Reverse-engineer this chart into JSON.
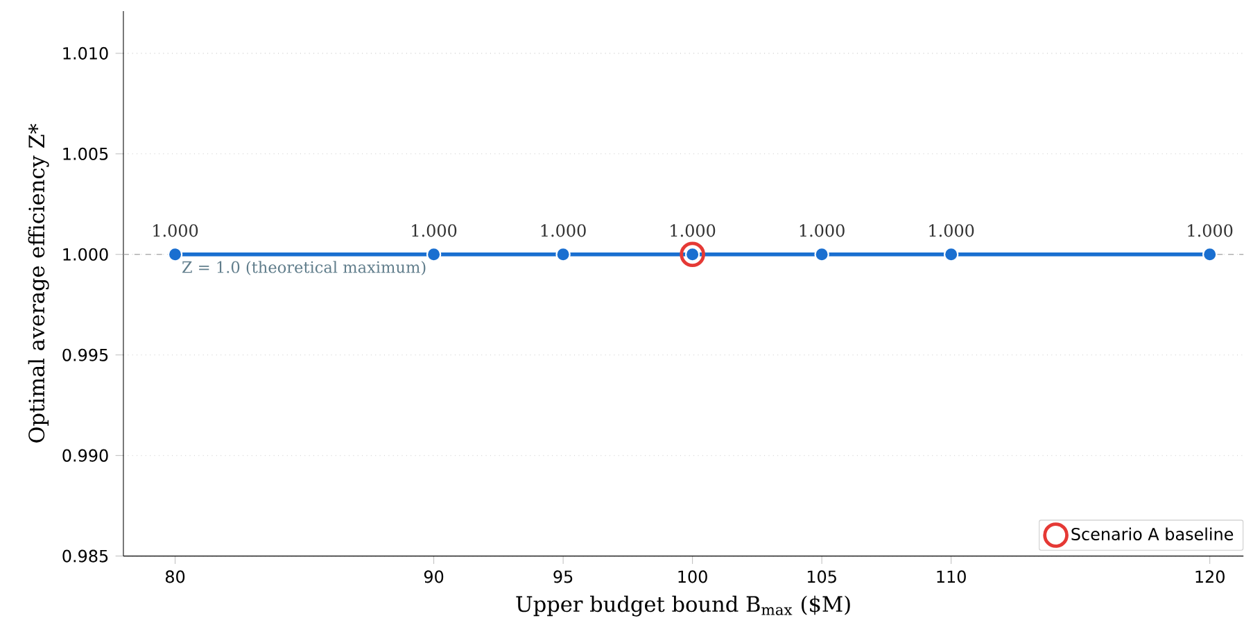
{
  "chart_data": {
    "type": "line",
    "xlabel": "Upper budget bound  B$_{max}$  ($M)",
    "ylabel": "Optimal average efficiency  Z*",
    "x": [
      80,
      90,
      95,
      100,
      105,
      110,
      120
    ],
    "series": [
      {
        "color": "#1a6fd0",
        "values": [
          1.0,
          1.0,
          1.0,
          1.0,
          1.0,
          1.0,
          1.0
        ],
        "value_labels": [
          "1.000",
          "1.000",
          "1.000",
          "1.000",
          "1.000",
          "1.000",
          "1.000"
        ]
      },
      {
        "name": "Scenario A baseline",
        "type": "scatter",
        "color": "#e53935",
        "x": [
          100
        ],
        "values": [
          1.0
        ]
      }
    ],
    "xlim": [
      78.0,
      121.3
    ],
    "ylim": [
      0.985,
      1.0121
    ],
    "xticks": [
      80,
      90,
      95,
      100,
      105,
      110,
      120
    ],
    "yticks": [
      {
        "value": 0.985,
        "label": "0.985"
      },
      {
        "value": 0.99,
        "label": "0.990"
      },
      {
        "value": 0.995,
        "label": "0.995"
      },
      {
        "value": 1.0,
        "label": "1.000"
      },
      {
        "value": 1.005,
        "label": "1.005"
      },
      {
        "value": 1.01,
        "label": "1.010"
      }
    ],
    "ref_lines": [
      {
        "axis": "y",
        "value": 1.0,
        "label": "Z = 1.0 (theoretical maximum)",
        "color": "#aaaaaa",
        "line_style": "dashed"
      }
    ],
    "grid": "y",
    "legend": "bottom right",
    "marker": "circle",
    "line_style": "solid"
  }
}
